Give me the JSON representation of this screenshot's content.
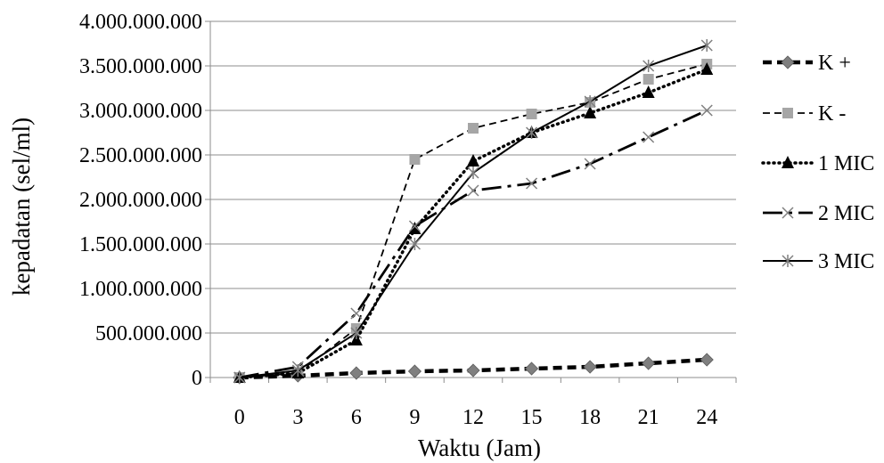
{
  "chart_data": {
    "type": "line",
    "title": "",
    "xlabel": "Waktu (Jam)",
    "ylabel": "kepadatan (sel/ml)",
    "categories": [
      "0",
      "3",
      "6",
      "9",
      "12",
      "15",
      "18",
      "21",
      "24"
    ],
    "ylim": [
      0,
      4000000000
    ],
    "yticks": [
      0,
      500000000,
      1000000000,
      1500000000,
      2000000000,
      2500000000,
      3000000000,
      3500000000,
      4000000000
    ],
    "ytick_labels": [
      "0",
      "500.000.000",
      "1.000.000.000",
      "1.500.000.000",
      "2.000.000.000",
      "2.500.000.000",
      "3.000.000.000",
      "3.500.000.000",
      "4.000.000.000"
    ],
    "grid": true,
    "legend_position": "right",
    "series": [
      {
        "name": "K +",
        "values": [
          0,
          20000000,
          50000000,
          70000000,
          80000000,
          100000000,
          120000000,
          160000000,
          200000000
        ],
        "color": "#7f7f7f",
        "line_color": "#000000",
        "line_style": "heavy-dash",
        "marker": "diamond"
      },
      {
        "name": "K -",
        "values": [
          0,
          50000000,
          550000000,
          2450000000,
          2800000000,
          2960000000,
          3090000000,
          3350000000,
          3520000000
        ],
        "color": "#a6a6a6",
        "line_color": "#000000",
        "line_style": "dash",
        "marker": "square"
      },
      {
        "name": "1 MIC",
        "values": [
          0,
          50000000,
          420000000,
          1670000000,
          2430000000,
          2750000000,
          2970000000,
          3200000000,
          3460000000
        ],
        "color": "#000000",
        "line_color": "#000000",
        "line_style": "dot",
        "marker": "triangle"
      },
      {
        "name": "2 MIC",
        "values": [
          0,
          120000000,
          720000000,
          1700000000,
          2100000000,
          2180000000,
          2400000000,
          2700000000,
          3000000000
        ],
        "color": "#7f7f7f",
        "line_color": "#000000",
        "line_style": "long-dash-dot",
        "marker": "x"
      },
      {
        "name": "3 MIC",
        "values": [
          0,
          80000000,
          500000000,
          1500000000,
          2300000000,
          2750000000,
          3100000000,
          3500000000,
          3730000000
        ],
        "color": "#7f7f7f",
        "line_color": "#000000",
        "line_style": "solid",
        "marker": "asterisk"
      }
    ]
  }
}
